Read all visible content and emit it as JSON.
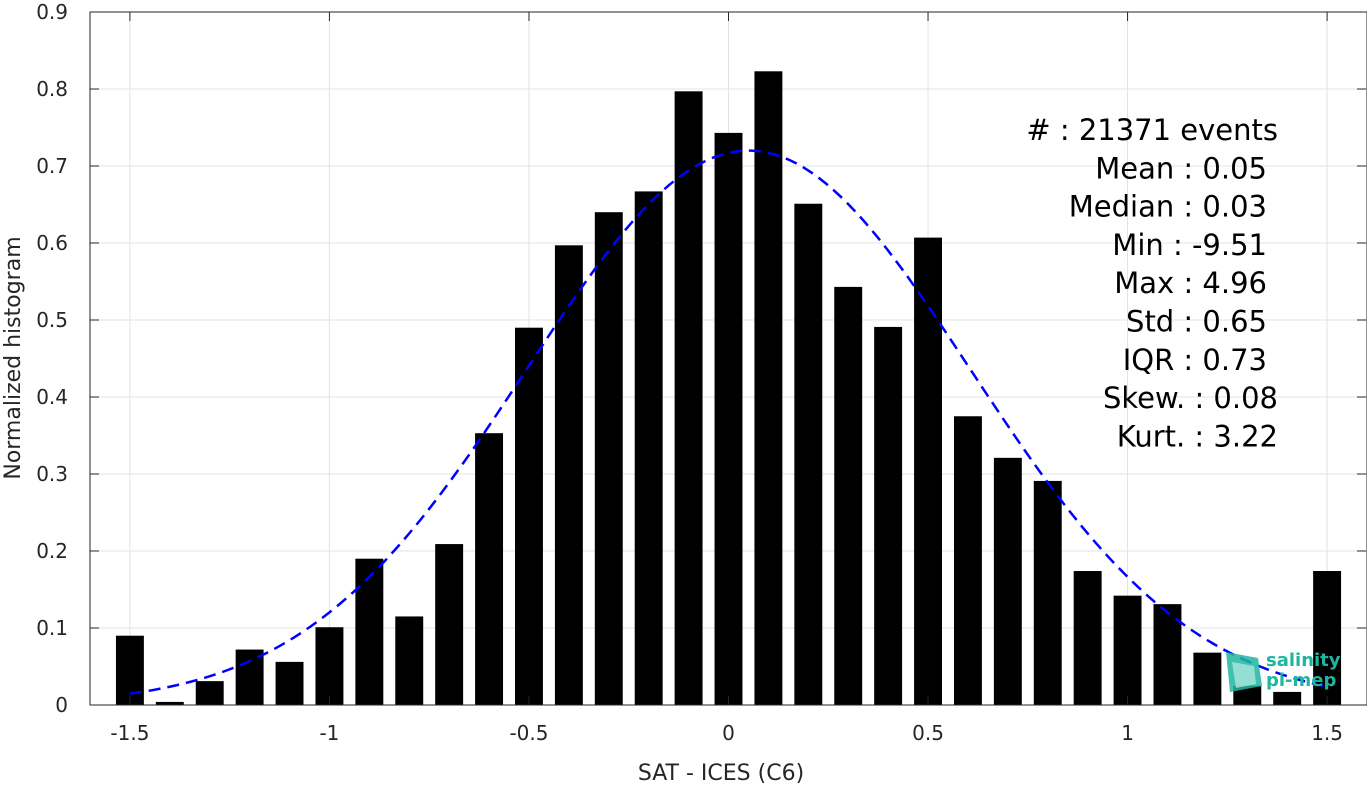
{
  "chart_data": {
    "type": "bar",
    "title": "",
    "xlabel": "SAT - ICES (C6)",
    "ylabel": "Normalized histogram",
    "xlim": [
      -1.6,
      1.6
    ],
    "ylim": [
      0,
      0.9
    ],
    "x_ticks": [
      -1.5,
      -1,
      -0.5,
      0,
      0.5,
      1,
      1.5
    ],
    "x_tick_labels": [
      "-1.5",
      "-1",
      "-0.5",
      "0",
      "0.5",
      "1",
      "1.5"
    ],
    "y_ticks": [
      0,
      0.1,
      0.2,
      0.3,
      0.4,
      0.5,
      0.6,
      0.7,
      0.8,
      0.9
    ],
    "y_tick_labels": [
      "0",
      "0.1",
      "0.2",
      "0.3",
      "0.4",
      "0.5",
      "0.6",
      "0.7",
      "0.8",
      "0.9"
    ],
    "grid": true,
    "bar_color": "#000000",
    "bin_width": 0.1,
    "bar_width_fraction": 0.7,
    "bins": {
      "x": [
        -1.5,
        -1.4,
        -1.3,
        -1.2,
        -1.1,
        -1.0,
        -0.9,
        -0.8,
        -0.7,
        -0.6,
        -0.5,
        -0.4,
        -0.3,
        -0.2,
        -0.1,
        0.0,
        0.1,
        0.2,
        0.3,
        0.4,
        0.5,
        0.6,
        0.7,
        0.8,
        0.9,
        1.0,
        1.1,
        1.2,
        1.3,
        1.4,
        1.5
      ],
      "values": [
        0.09,
        0.004,
        0.031,
        0.072,
        0.056,
        0.101,
        0.19,
        0.115,
        0.209,
        0.353,
        0.49,
        0.597,
        0.64,
        0.667,
        0.797,
        0.743,
        0.823,
        0.651,
        0.543,
        0.491,
        0.607,
        0.375,
        0.321,
        0.291,
        0.174,
        0.142,
        0.131,
        0.068,
        0.025,
        0.017,
        0.174
      ]
    },
    "fit_curve": {
      "type": "gaussian",
      "color": "#0000ff",
      "style": "dashed",
      "mean": 0.05,
      "peak": 0.72,
      "sigma": 0.555,
      "x_range": [
        -1.5,
        1.5
      ]
    },
    "annotations": [
      {
        "label": "#  : 21371 events",
        "align": "right-far"
      },
      {
        "label": "Mean : 0.05",
        "align": "right"
      },
      {
        "label": "Median : 0.03",
        "align": "right"
      },
      {
        "label": "Min : -9.51",
        "align": "right"
      },
      {
        "label": "Max : 4.96",
        "align": "right"
      },
      {
        "label": "Std : 0.65",
        "align": "right"
      },
      {
        "label": "IQR : 0.73",
        "align": "right"
      },
      {
        "label": "Skew. : 0.08",
        "align": "right-far"
      },
      {
        "label": "Kurt. : 3.22",
        "align": "right-far"
      }
    ]
  },
  "watermark": {
    "icon": "salinity-pi-mep-logo-icon",
    "line1": "salinity",
    "line2": "pi-mep",
    "color": "#1fb5a0"
  }
}
